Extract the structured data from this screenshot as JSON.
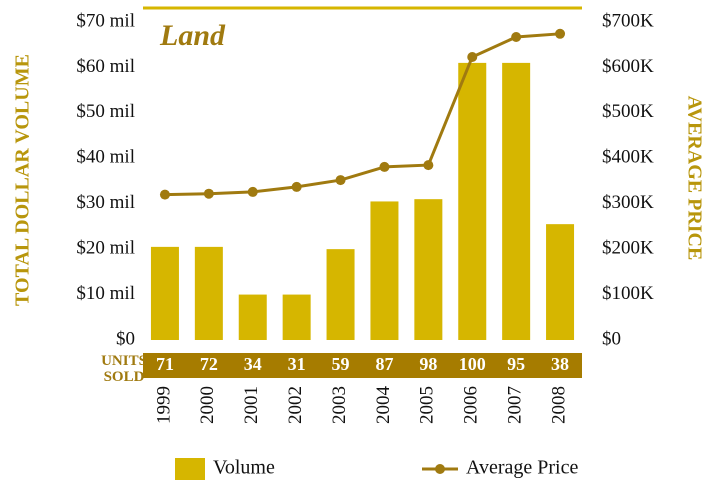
{
  "chart_data": {
    "type": "bar",
    "title": "Land",
    "y_label": "TOTAL DOLLAR VOLUME",
    "y2_label": "AVERAGE PRICE",
    "categories": [
      "1999",
      "2000",
      "2001",
      "2002",
      "2003",
      "2004",
      "2005",
      "2006",
      "2007",
      "2008"
    ],
    "series": [
      {
        "name": "Volume",
        "type": "bar",
        "color": "#d6b600",
        "values": [
          20.5,
          20.5,
          10,
          10,
          20,
          30.5,
          31,
          61,
          61,
          25.5
        ]
      },
      {
        "name": "Average Price",
        "type": "line",
        "axis": "y2",
        "color": "#a07a10",
        "values": [
          320,
          322,
          326,
          337,
          352,
          381,
          385,
          623,
          667,
          674
        ]
      }
    ],
    "units_label": "UNITS SOLD",
    "units_sold": [
      71,
      72,
      34,
      31,
      59,
      87,
      98,
      100,
      95,
      38
    ],
    "ylim": [
      0,
      70
    ],
    "yticks": [
      {
        "value": 0,
        "label": "$0"
      },
      {
        "value": 10,
        "label": "$10 mil"
      },
      {
        "value": 20,
        "label": "$20 mil"
      },
      {
        "value": 30,
        "label": "$30 mil"
      },
      {
        "value": 40,
        "label": "$40 mil"
      },
      {
        "value": 50,
        "label": "$50 mil"
      },
      {
        "value": 60,
        "label": "$60 mil"
      },
      {
        "value": 70,
        "label": "$70 mil"
      }
    ],
    "y2lim": [
      0,
      700
    ],
    "y2ticks": [
      {
        "value": 0,
        "label": "$0"
      },
      {
        "value": 100,
        "label": "$100K"
      },
      {
        "value": 200,
        "label": "$200K"
      },
      {
        "value": 300,
        "label": "$300K"
      },
      {
        "value": 400,
        "label": "$400K"
      },
      {
        "value": 500,
        "label": "$500K"
      },
      {
        "value": 600,
        "label": "$600K"
      },
      {
        "value": 700,
        "label": "$700K"
      }
    ],
    "grid": false
  }
}
